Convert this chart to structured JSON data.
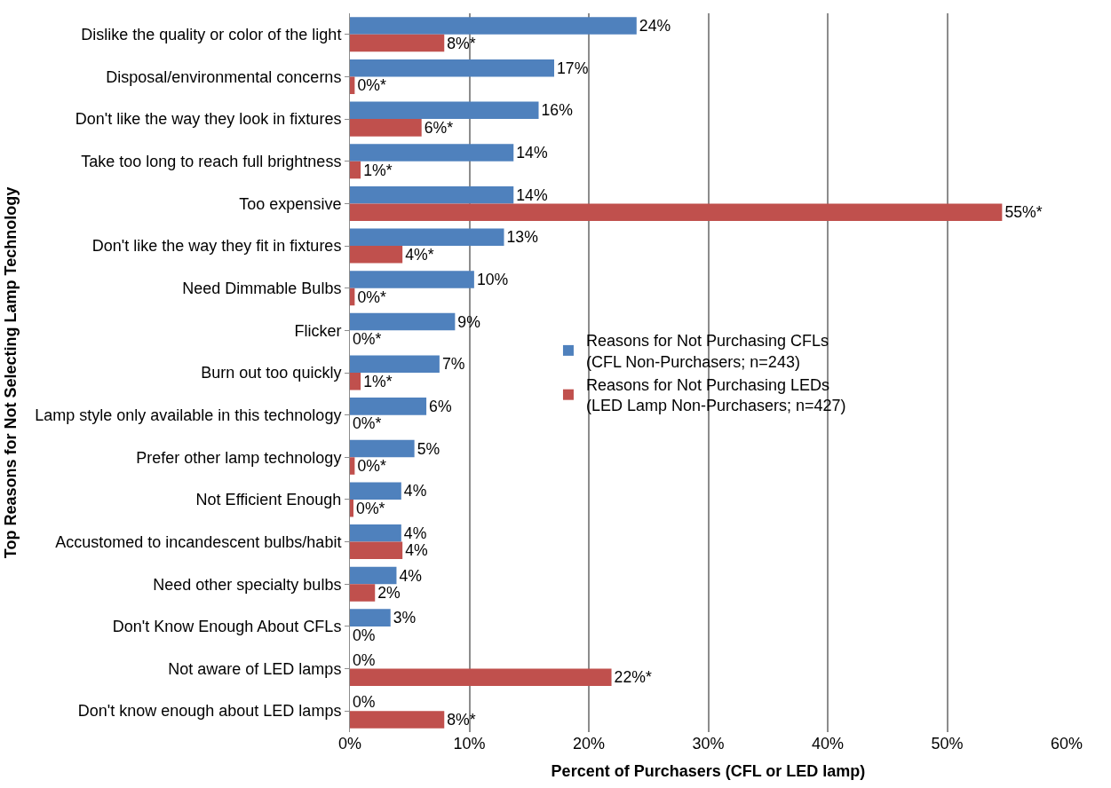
{
  "chart_data": {
    "type": "bar",
    "orientation": "horizontal",
    "categories": [
      "Dislike the quality or color of the light",
      "Disposal/environmental concerns",
      "Don't like the way they look in fixtures",
      "Take too long to reach full brightness",
      "Too expensive",
      "Don't like the way they fit in fixtures",
      "Need Dimmable Bulbs",
      "Flicker",
      "Burn out too quickly",
      "Lamp style only available in this technology",
      "Prefer other lamp technology",
      "Not Efficient Enough",
      "Accustomed to incandescent bulbs/habit",
      "Need other specialty bulbs",
      "Don't Know Enough About CFLs",
      "Not aware of LED lamps",
      "Don't know enough about LED lamps"
    ],
    "series": [
      {
        "name": "Reasons for Not Purchasing CFLs\n(CFL Non-Purchasers; n=243)",
        "color": "#4f81bd",
        "values": [
          24,
          17.1,
          15.8,
          13.7,
          13.7,
          12.9,
          10.4,
          8.8,
          7.5,
          6.4,
          5.4,
          4.3,
          4.3,
          3.9,
          3.4,
          0,
          0
        ],
        "value_labels": [
          "24%",
          "17%",
          "16%",
          "14%",
          "14%",
          "13%",
          "10%",
          "9%",
          "7%",
          "6%",
          "5%",
          "4%",
          "4%",
          "4%",
          "3%",
          "0%",
          "0%"
        ]
      },
      {
        "name": "Reasons for Not Purchasing LEDs\n(LED Lamp Non-Purchasers; n=427)",
        "color": "#c0504d",
        "values": [
          7.9,
          0.4,
          6,
          0.9,
          54.6,
          4.4,
          0.4,
          0,
          0.9,
          0,
          0.4,
          0.3,
          4.4,
          2.1,
          0,
          21.9,
          7.9
        ],
        "value_labels": [
          "8%*",
          "0%*",
          "6%*",
          "1%*",
          "55%*",
          "4%*",
          "0%*",
          "0%*",
          "1%*",
          "0%*",
          "0%*",
          "0%*",
          "4%",
          "2%",
          "0%",
          "22%*",
          "8%*"
        ]
      }
    ],
    "xlabel": "Percent of Purchasers (CFL or LED lamp)",
    "ylabel": "Top Reasons for Not Selecting Lamp Technology",
    "xlim": [
      0,
      60
    ],
    "xticks": [
      {
        "value": 0,
        "label": "0%"
      },
      {
        "value": 10,
        "label": "10%"
      },
      {
        "value": 20,
        "label": "20%"
      },
      {
        "value": 30,
        "label": "30%"
      },
      {
        "value": 40,
        "label": "40%"
      },
      {
        "value": 50,
        "label": "50%"
      },
      {
        "value": 60,
        "label": "60%"
      }
    ],
    "grid": "x",
    "legend": "right"
  }
}
